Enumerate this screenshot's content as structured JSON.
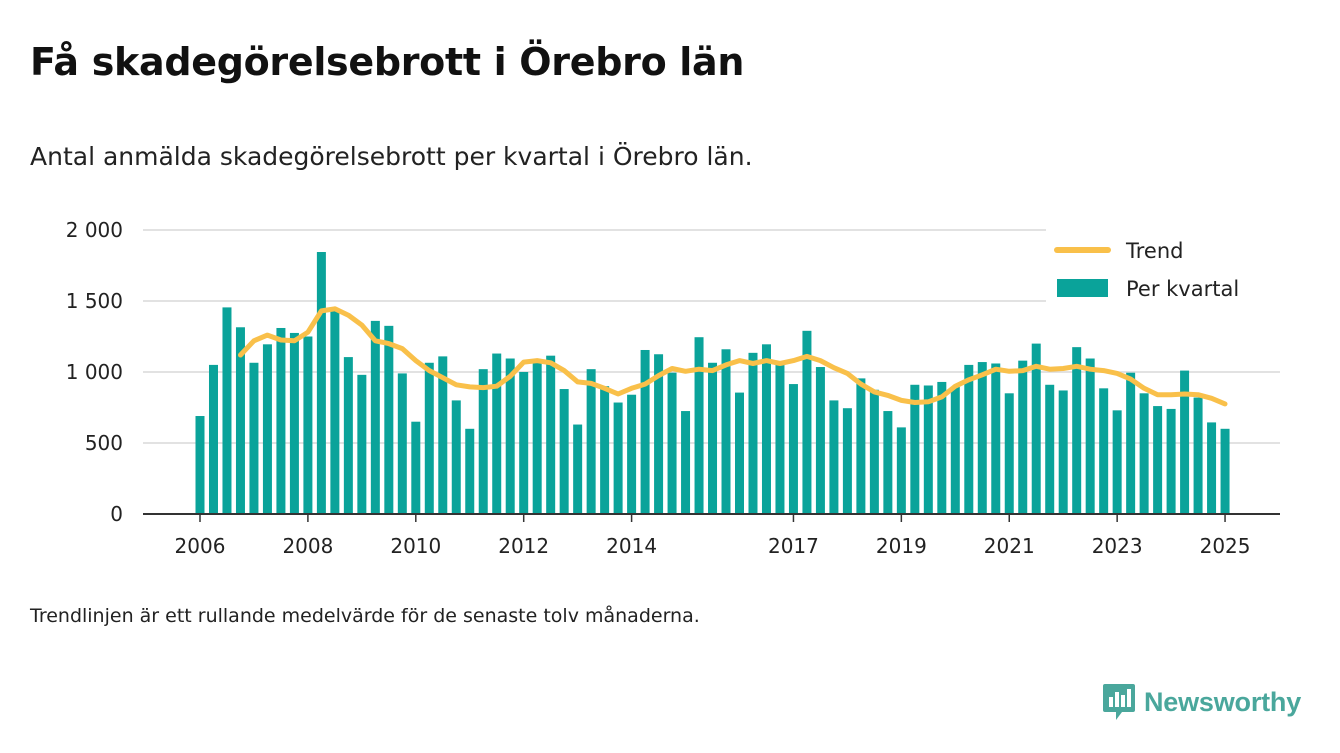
{
  "header": {
    "title": "Få skadegörelsebrott i Örebro län",
    "subtitle": "Antal anmälda skadegörelsebrott per kvartal i Örebro län."
  },
  "footer": {
    "note": "Trendlinjen är ett rullande medelvärde för de senaste tolv månaderna.",
    "brand": "Newsworthy",
    "brand_icon": "newsworthy-logo-icon"
  },
  "colors": {
    "bar": "#0aa39a",
    "trend": "#f9c04a",
    "grid": "#d9d9d9",
    "axis": "#333333",
    "brand": "#4aa79c"
  },
  "chart_data": {
    "type": "bar",
    "x_start": 2006.0,
    "x_step": 0.25,
    "ylim": [
      0,
      2000
    ],
    "yticks": [
      0,
      500,
      1000,
      1500,
      2000
    ],
    "ytick_labels": [
      "0",
      "500",
      "1 000",
      "1 500",
      "2 000"
    ],
    "xticks": [
      2006,
      2008,
      2010,
      2012,
      2014,
      2017,
      2019,
      2021,
      2023,
      2025
    ],
    "xtick_labels": [
      "2006",
      "2008",
      "2010",
      "2012",
      "2014",
      "2017",
      "2019",
      "2021",
      "2023",
      "2025"
    ],
    "grid": "horizontal",
    "legend_position": "top-right",
    "series": [
      {
        "name": "Per kvartal",
        "type": "bar",
        "values": [
          690,
          1050,
          1455,
          1315,
          1065,
          1195,
          1310,
          1275,
          1250,
          1845,
          1435,
          1105,
          980,
          1360,
          1325,
          990,
          650,
          1065,
          1110,
          800,
          600,
          1020,
          1130,
          1095,
          1000,
          1070,
          1115,
          880,
          630,
          1020,
          900,
          785,
          840,
          1155,
          1125,
          995,
          725,
          1245,
          1065,
          1160,
          855,
          1135,
          1195,
          1050,
          915,
          1290,
          1035,
          800,
          745,
          955,
          875,
          725,
          610,
          910,
          905,
          930,
          895,
          1050,
          1070,
          1060,
          850,
          1080,
          1200,
          910,
          870,
          1175,
          1095,
          885,
          730,
          995,
          850,
          760,
          740,
          1010,
          820,
          645,
          600
        ]
      },
      {
        "name": "Trend",
        "type": "line",
        "values": [
          null,
          null,
          null,
          1120,
          1220,
          1260,
          1225,
          1220,
          1280,
          1430,
          1445,
          1400,
          1330,
          1220,
          1200,
          1165,
          1080,
          1010,
          960,
          910,
          895,
          890,
          900,
          970,
          1070,
          1080,
          1065,
          1010,
          930,
          920,
          885,
          845,
          885,
          915,
          975,
          1025,
          1005,
          1020,
          1010,
          1050,
          1080,
          1060,
          1080,
          1060,
          1080,
          1110,
          1080,
          1030,
          990,
          915,
          860,
          835,
          800,
          785,
          790,
          825,
          900,
          945,
          980,
          1020,
          1005,
          1010,
          1040,
          1020,
          1025,
          1040,
          1020,
          1010,
          990,
          950,
          885,
          840,
          840,
          845,
          840,
          815,
          775
        ]
      }
    ]
  }
}
